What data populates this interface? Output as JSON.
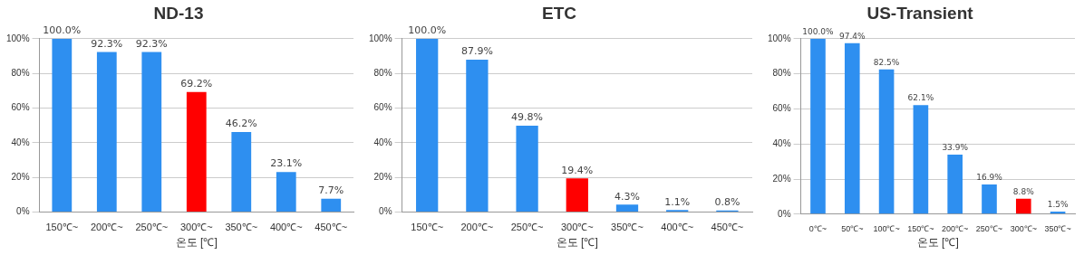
{
  "chart_data": [
    {
      "type": "bar",
      "title": "ND-13",
      "x_label": "온도 [℃]",
      "categories": [
        "150℃~",
        "200℃~",
        "250℃~",
        "300℃~",
        "350℃~",
        "400℃~",
        "450℃~"
      ],
      "values": [
        100.0,
        92.3,
        92.3,
        69.2,
        46.2,
        23.1,
        7.7
      ],
      "value_labels": [
        "100.0%",
        "92.3%",
        "92.3%",
        "69.2%",
        "46.2%",
        "23.1%",
        "7.7%"
      ],
      "colors": [
        "#2e8ff0",
        "#2e8ff0",
        "#2e8ff0",
        "#ff0000",
        "#2e8ff0",
        "#2e8ff0",
        "#2e8ff0"
      ],
      "ylim": [
        0,
        100
      ],
      "yticks": [
        {
          "value": 0,
          "label": "0%"
        },
        {
          "value": 20,
          "label": "20%"
        },
        {
          "value": 40,
          "label": "40%"
        },
        {
          "value": 60,
          "label": "60%"
        },
        {
          "value": 80,
          "label": "80%"
        },
        {
          "value": 100,
          "label": "100%"
        }
      ],
      "grid": true,
      "data_labels": true
    },
    {
      "type": "bar",
      "title": "ETC",
      "x_label": "온도 [℃]",
      "categories": [
        "150℃~",
        "200℃~",
        "250℃~",
        "300℃~",
        "350℃~",
        "400℃~",
        "450℃~"
      ],
      "values": [
        100.0,
        87.9,
        49.8,
        19.4,
        4.3,
        1.1,
        0.8
      ],
      "value_labels": [
        "100.0%",
        "87.9%",
        "49.8%",
        "19.4%",
        "4.3%",
        "1.1%",
        "0.8%"
      ],
      "colors": [
        "#2e8ff0",
        "#2e8ff0",
        "#2e8ff0",
        "#ff0000",
        "#2e8ff0",
        "#2e8ff0",
        "#2e8ff0"
      ],
      "ylim": [
        0,
        100
      ],
      "yticks": [
        {
          "value": 0,
          "label": "0%"
        },
        {
          "value": 20,
          "label": "20%"
        },
        {
          "value": 40,
          "label": "40%"
        },
        {
          "value": 60,
          "label": "60%"
        },
        {
          "value": 80,
          "label": "80%"
        },
        {
          "value": 100,
          "label": "100%"
        }
      ],
      "grid": true,
      "data_labels": true
    },
    {
      "type": "bar",
      "title": "US-Transient",
      "x_label": "온도 [℃]",
      "categories": [
        "0℃~",
        "50℃~",
        "100℃~",
        "150℃~",
        "200℃~",
        "250℃~",
        "300℃~",
        "350℃~"
      ],
      "values": [
        100.0,
        97.4,
        82.5,
        62.1,
        33.9,
        16.9,
        8.8,
        1.5
      ],
      "value_labels": [
        "100.0%",
        "97.4%",
        "82.5%",
        "62.1%",
        "33.9%",
        "16.9%",
        "8.8%",
        "1.5%"
      ],
      "colors": [
        "#2e8ff0",
        "#2e8ff0",
        "#2e8ff0",
        "#2e8ff0",
        "#2e8ff0",
        "#2e8ff0",
        "#ff0000",
        "#2e8ff0"
      ],
      "ylim": [
        0,
        100
      ],
      "yticks": [
        {
          "value": 0,
          "label": "0%"
        },
        {
          "value": 20,
          "label": "20%"
        },
        {
          "value": 40,
          "label": "40%"
        },
        {
          "value": 60,
          "label": "60%"
        },
        {
          "value": 80,
          "label": "80%"
        },
        {
          "value": 100,
          "label": "100%"
        }
      ],
      "grid": true,
      "data_labels": true
    }
  ]
}
